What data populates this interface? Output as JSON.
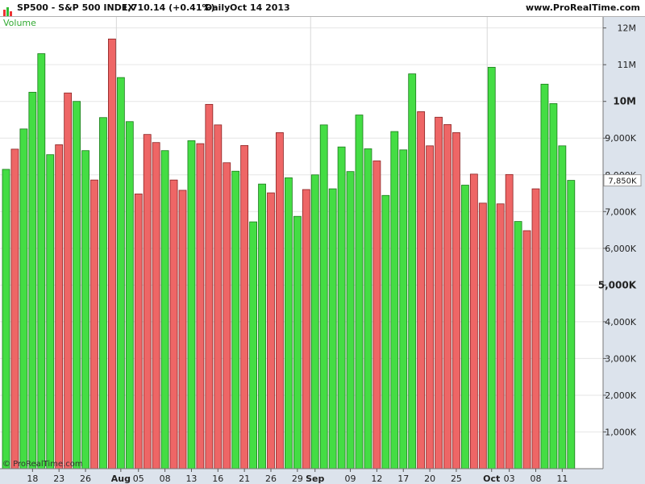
{
  "header": {
    "symbol": "SP500 - S&P 500 INDEX",
    "quote": "1,710.14 (+0.41%)",
    "period": "Daily",
    "date": "Oct 14 2013",
    "site": "www.ProRealTime.com"
  },
  "indicator_label": "Volume",
  "watermark": "© ProRealTime.com",
  "current_value_label": "7,850K",
  "colors": {
    "up": "#44dd44",
    "down": "#ee6666",
    "up_border": "#1a7a1a",
    "down_border": "#8a2222",
    "indicator_label": "#33aa33",
    "current_label_text": "#33aa33"
  },
  "chart_data": {
    "type": "bar",
    "title": "SP500 - S&P 500 INDEX",
    "ylabel": "Volume",
    "ylim": [
      0,
      12300000
    ],
    "y_ticks": [
      {
        "value": 1000000,
        "label": "1,000K",
        "bold": false
      },
      {
        "value": 2000000,
        "label": "2,000K",
        "bold": false
      },
      {
        "value": 3000000,
        "label": "3,000K",
        "bold": false
      },
      {
        "value": 4000000,
        "label": "4,000K",
        "bold": false
      },
      {
        "value": 5000000,
        "label": "5,000K",
        "bold": true
      },
      {
        "value": 6000000,
        "label": "6,000K",
        "bold": false
      },
      {
        "value": 7000000,
        "label": "7,000K",
        "bold": false
      },
      {
        "value": 8000000,
        "label": "8,000K",
        "bold": false
      },
      {
        "value": 9000000,
        "label": "9,000K",
        "bold": false
      },
      {
        "value": 10000000,
        "label": "10M",
        "bold": true
      },
      {
        "value": 11000000,
        "label": "11M",
        "bold": false
      },
      {
        "value": 12000000,
        "label": "12M",
        "bold": false
      }
    ],
    "x_ticks": [
      {
        "index": 3,
        "label": "18",
        "bold": false
      },
      {
        "index": 6,
        "label": "23",
        "bold": false
      },
      {
        "index": 9,
        "label": "26",
        "bold": false
      },
      {
        "index": 13,
        "label": "Aug",
        "bold": true
      },
      {
        "index": 15,
        "label": "05",
        "bold": false
      },
      {
        "index": 18,
        "label": "08",
        "bold": false
      },
      {
        "index": 21,
        "label": "13",
        "bold": false
      },
      {
        "index": 24,
        "label": "16",
        "bold": false
      },
      {
        "index": 27,
        "label": "21",
        "bold": false
      },
      {
        "index": 30,
        "label": "26",
        "bold": false
      },
      {
        "index": 33,
        "label": "29",
        "bold": false
      },
      {
        "index": 35,
        "label": "Sep",
        "bold": true
      },
      {
        "index": 39,
        "label": "09",
        "bold": false
      },
      {
        "index": 42,
        "label": "12",
        "bold": false
      },
      {
        "index": 45,
        "label": "17",
        "bold": false
      },
      {
        "index": 48,
        "label": "20",
        "bold": false
      },
      {
        "index": 51,
        "label": "25",
        "bold": false
      },
      {
        "index": 55,
        "label": "Oct",
        "bold": true
      },
      {
        "index": 57,
        "label": "03",
        "bold": false
      },
      {
        "index": 60,
        "label": "08",
        "bold": false
      },
      {
        "index": 63,
        "label": "11",
        "bold": false
      }
    ],
    "bars": [
      {
        "v": 8150000,
        "d": "up"
      },
      {
        "v": 8700000,
        "d": "down"
      },
      {
        "v": 9250000,
        "d": "up"
      },
      {
        "v": 10250000,
        "d": "up"
      },
      {
        "v": 11300000,
        "d": "up"
      },
      {
        "v": 8550000,
        "d": "up"
      },
      {
        "v": 8820000,
        "d": "down"
      },
      {
        "v": 10230000,
        "d": "down"
      },
      {
        "v": 10000000,
        "d": "up"
      },
      {
        "v": 8660000,
        "d": "up"
      },
      {
        "v": 7860000,
        "d": "down"
      },
      {
        "v": 9560000,
        "d": "up"
      },
      {
        "v": 11700000,
        "d": "down"
      },
      {
        "v": 10650000,
        "d": "up"
      },
      {
        "v": 9450000,
        "d": "up"
      },
      {
        "v": 7480000,
        "d": "down"
      },
      {
        "v": 9100000,
        "d": "down"
      },
      {
        "v": 8880000,
        "d": "down"
      },
      {
        "v": 8660000,
        "d": "up"
      },
      {
        "v": 7860000,
        "d": "down"
      },
      {
        "v": 7580000,
        "d": "down"
      },
      {
        "v": 8930000,
        "d": "up"
      },
      {
        "v": 8850000,
        "d": "down"
      },
      {
        "v": 9920000,
        "d": "down"
      },
      {
        "v": 9360000,
        "d": "down"
      },
      {
        "v": 8330000,
        "d": "down"
      },
      {
        "v": 8100000,
        "d": "up"
      },
      {
        "v": 8800000,
        "d": "down"
      },
      {
        "v": 6720000,
        "d": "up"
      },
      {
        "v": 7750000,
        "d": "up"
      },
      {
        "v": 7510000,
        "d": "down"
      },
      {
        "v": 9150000,
        "d": "down"
      },
      {
        "v": 7920000,
        "d": "up"
      },
      {
        "v": 6870000,
        "d": "up"
      },
      {
        "v": 7600000,
        "d": "down"
      },
      {
        "v": 8000000,
        "d": "up"
      },
      {
        "v": 9360000,
        "d": "up"
      },
      {
        "v": 7620000,
        "d": "up"
      },
      {
        "v": 8760000,
        "d": "up"
      },
      {
        "v": 8090000,
        "d": "up"
      },
      {
        "v": 9630000,
        "d": "up"
      },
      {
        "v": 8710000,
        "d": "up"
      },
      {
        "v": 8380000,
        "d": "down"
      },
      {
        "v": 7440000,
        "d": "up"
      },
      {
        "v": 9180000,
        "d": "up"
      },
      {
        "v": 8680000,
        "d": "up"
      },
      {
        "v": 10750000,
        "d": "up"
      },
      {
        "v": 9720000,
        "d": "down"
      },
      {
        "v": 8790000,
        "d": "down"
      },
      {
        "v": 9570000,
        "d": "down"
      },
      {
        "v": 9370000,
        "d": "down"
      },
      {
        "v": 9150000,
        "d": "down"
      },
      {
        "v": 7720000,
        "d": "up"
      },
      {
        "v": 8020000,
        "d": "down"
      },
      {
        "v": 7230000,
        "d": "down"
      },
      {
        "v": 10930000,
        "d": "up"
      },
      {
        "v": 7210000,
        "d": "down"
      },
      {
        "v": 8010000,
        "d": "down"
      },
      {
        "v": 6730000,
        "d": "up"
      },
      {
        "v": 6480000,
        "d": "down"
      },
      {
        "v": 7620000,
        "d": "down"
      },
      {
        "v": 10470000,
        "d": "up"
      },
      {
        "v": 9940000,
        "d": "up"
      },
      {
        "v": 8790000,
        "d": "up"
      },
      {
        "v": 7850000,
        "d": "up"
      }
    ]
  }
}
